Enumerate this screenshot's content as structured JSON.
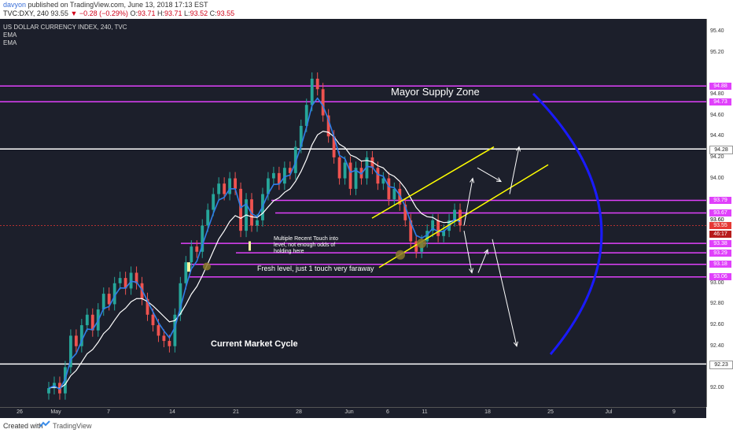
{
  "header": {
    "user": "davyon",
    "published": "published on TradingView.com, June 13, 2018 17:13 EST",
    "symbol": "TVC:DXY, 240",
    "last": "93.55",
    "change": "−0.28 (−0.29%)",
    "ohlc": {
      "o_label": "O:",
      "o": "93.71",
      "h_label": "H:",
      "h": "93.71",
      "l_label": "L:",
      "l": "93.52",
      "c_label": "C:",
      "c": "93.55"
    }
  },
  "legend": {
    "title": "US DOLLAR CURRENCY INDEX, 240, TVC",
    "ema1": "EMA",
    "ema2": "EMA"
  },
  "annotations": {
    "supply_zone": "Mayor Supply Zone",
    "multiple_touch": "Multiple Recent Touch into level, not enough odds of holding here",
    "fresh_level": "Fresh level, just 1 touch very faraway",
    "market_cycle": "Current Market Cycle"
  },
  "footer": {
    "created_with": "Created with",
    "brand": "TradingView"
  },
  "colors": {
    "background": "#1c1f2b",
    "up_candle": "#26a69a",
    "down_candle": "#ef5350",
    "ema_fast": "#2f7ee8",
    "ema_slow": "#ffffff",
    "level_magenta": "#e040fb",
    "level_white": "#ffffff",
    "channel": "#ffff00",
    "cycle_arc": "#1a1aff",
    "price_tag": "#e53935"
  },
  "chart_data": {
    "type": "candlestick",
    "title": "US DOLLAR CURRENCY INDEX, 240, TVC",
    "ylim": [
      91.82,
      95.52
    ],
    "y_ticks": [
      "95.40",
      "95.20",
      "94.80",
      "94.60",
      "94.40",
      "94.20",
      "94.00",
      "93.60",
      "93.00",
      "92.80",
      "92.60",
      "92.40",
      "92.00"
    ],
    "x_ticks": [
      "26",
      "May",
      "7",
      "14",
      "21",
      "28",
      "Jun",
      "6",
      "11",
      "18",
      "25",
      "Jul",
      "9"
    ],
    "price_series": [
      92.0,
      92.05,
      91.95,
      92.2,
      92.5,
      92.4,
      92.6,
      92.7,
      92.55,
      92.75,
      92.9,
      92.8,
      93.0,
      93.05,
      92.95,
      93.1,
      93.0,
      92.85,
      92.7,
      92.6,
      92.5,
      92.45,
      92.4,
      92.7,
      93.0,
      93.2,
      93.35,
      93.3,
      93.55,
      93.7,
      93.85,
      93.95,
      93.85,
      94.0,
      93.9,
      93.5,
      93.8,
      93.55,
      93.6,
      93.85,
      94.0,
      94.05,
      93.95,
      94.1,
      94.05,
      94.3,
      94.5,
      94.7,
      94.95,
      94.85,
      94.6,
      94.4,
      94.2,
      94.0,
      94.15,
      93.9,
      94.1,
      94.0,
      94.2,
      94.1,
      93.95,
      94.0,
      93.8,
      93.9,
      93.75,
      93.6,
      93.4,
      93.3,
      93.4,
      93.5,
      93.6,
      93.45,
      93.5,
      93.6,
      93.7,
      93.55
    ],
    "levels": [
      {
        "price": "94.88",
        "color": "magenta"
      },
      {
        "price": "94.73",
        "color": "magenta"
      },
      {
        "price": "94.28",
        "color": "white"
      },
      {
        "price": "93.79",
        "color": "magenta"
      },
      {
        "price": "93.67",
        "color": "magenta"
      },
      {
        "price": "93.38",
        "color": "magenta"
      },
      {
        "price": "93.29",
        "color": "magenta"
      },
      {
        "price": "93.18",
        "color": "magenta"
      },
      {
        "price": "93.06",
        "color": "magenta"
      },
      {
        "price": "92.23",
        "color": "white"
      }
    ],
    "current_price": "93.55",
    "current_price_extra": "46:17",
    "current_price_label": "93.60"
  }
}
